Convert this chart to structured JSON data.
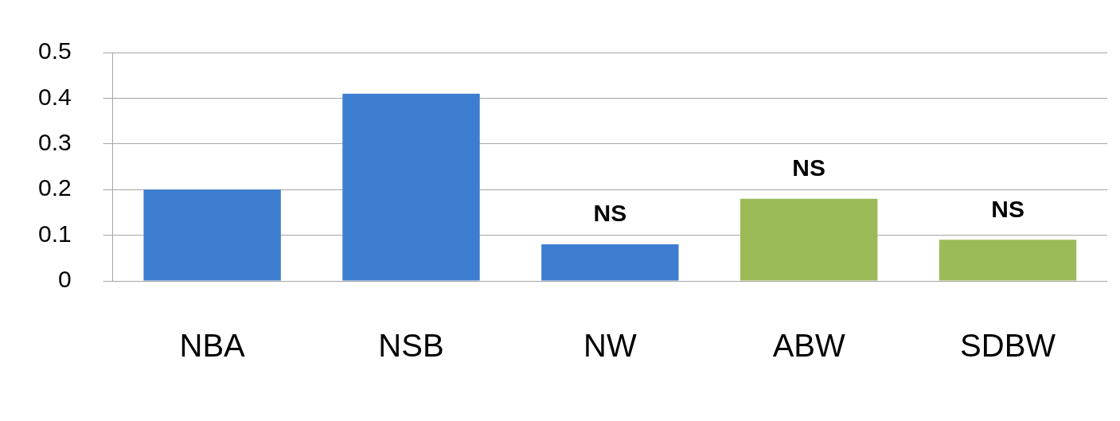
{
  "chart_data": {
    "type": "bar",
    "categories": [
      "NBA",
      "NSB",
      "NW",
      "ABW",
      "SDBW"
    ],
    "values": [
      0.2,
      0.41,
      0.08,
      0.18,
      0.09
    ],
    "colors": [
      "#3c7dcf",
      "#3c7dcf",
      "#3c7dcf",
      "#9bbb59",
      "#9bbb59"
    ],
    "ylim": [
      0,
      0.5
    ],
    "yticks": [
      0,
      0.1,
      0.2,
      0.3,
      0.4,
      0.5
    ],
    "grid": "y",
    "legend": false,
    "annotations": [
      {
        "text": "NS",
        "x": "NW",
        "y": 0.08
      },
      {
        "text": "NS",
        "x": "ABW",
        "y": 0.18
      },
      {
        "text": "NS",
        "x": "SDBW",
        "y": 0.09
      }
    ]
  }
}
